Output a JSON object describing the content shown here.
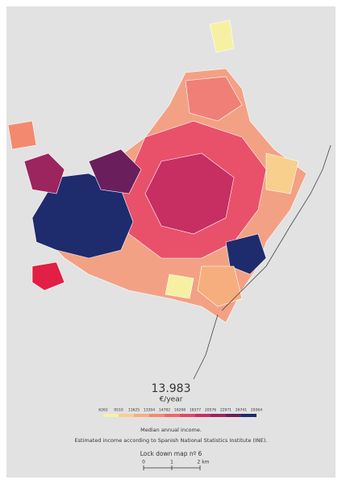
{
  "overlay": {
    "value": "13.983",
    "unit": "€/year"
  },
  "legend": {
    "ticks": [
      6262,
      9510,
      11625,
      13304,
      14782,
      16298,
      18377,
      20576,
      22971,
      26741,
      29364
    ],
    "colors": [
      "#f6f1a2",
      "#f8cf8c",
      "#f7ae7e",
      "#f38a6f",
      "#ee6768",
      "#e24666",
      "#c72e62",
      "#9c245f",
      "#6a1f5c",
      "#1e2b6d"
    ]
  },
  "caption": {
    "line1": "Median annual income.",
    "line2": "Estimated income according to Spanish National Statistics Institute (INE).",
    "map_label": "Lock down map nº 6"
  },
  "scale_bar": {
    "labels": [
      "0",
      "1",
      "2 km"
    ]
  }
}
